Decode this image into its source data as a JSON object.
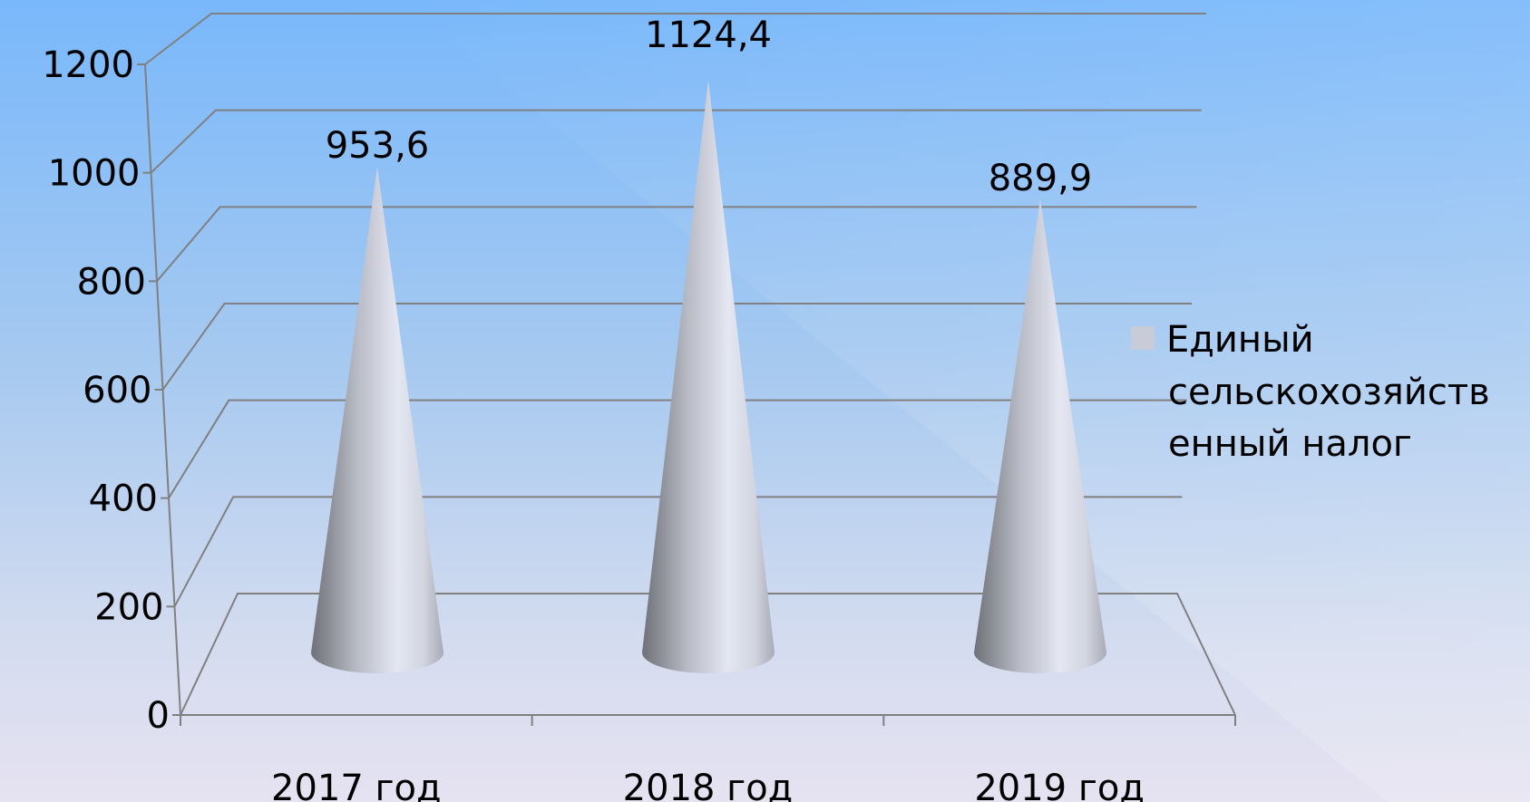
{
  "chart_data": {
    "type": "bar",
    "shape": "cone-3d",
    "categories": [
      "2017 год",
      "2018 год",
      "2019 год"
    ],
    "series": [
      {
        "name": "Единый сельскохозяйственный налог",
        "values": [
          953.6,
          1124.4,
          889.9
        ]
      }
    ],
    "data_labels": [
      "953,6",
      "1124,4",
      "889,9"
    ],
    "y_ticks": [
      "0",
      "200",
      "400",
      "600",
      "800",
      "1000",
      "1200"
    ],
    "ylim": [
      0,
      1200
    ],
    "grid": true,
    "legend": {
      "position": "right",
      "lines": [
        "Единый",
        "сельскохозяйств",
        "енный налог"
      ],
      "color": "#c8ccd8"
    },
    "colors": {
      "cone": "#c8ccd8",
      "grid": "#808080",
      "background_top": "#79b8fb",
      "background_bottom": "#e6e2f1"
    }
  }
}
